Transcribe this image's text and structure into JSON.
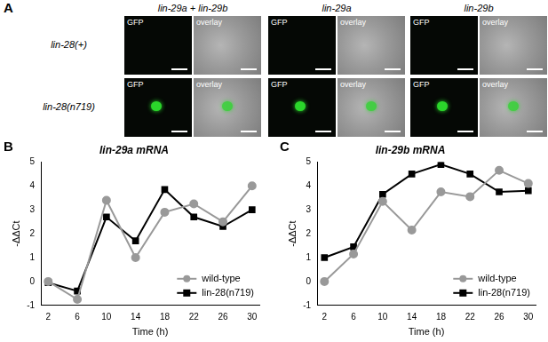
{
  "panel_a": {
    "panel_label": "A",
    "columns": [
      "lin-29a + lin-29b",
      "lin-29a",
      "lin-29b"
    ],
    "rows": [
      "lin-28(+)",
      "lin-28(n719)"
    ],
    "image_labels": [
      "GFP",
      "overlay"
    ]
  },
  "chart_data": [
    {
      "panel_label": "B",
      "type": "line",
      "title": "lin-29a mRNA",
      "x_label": "Time (h)",
      "y_label": "-ΔΔCt",
      "x": [
        2,
        6,
        10,
        14,
        18,
        22,
        26,
        30
      ],
      "series": [
        {
          "name": "wild-type",
          "color": "#999999",
          "marker": "circle",
          "values": [
            0,
            -0.75,
            3.4,
            1.0,
            2.9,
            3.25,
            2.5,
            4.0
          ]
        },
        {
          "name": "lin-28(n719)",
          "color": "#000000",
          "marker": "square",
          "values": [
            -0.05,
            -0.4,
            2.7,
            1.7,
            3.85,
            2.7,
            2.3,
            3.0
          ]
        }
      ],
      "xlim": [
        1,
        31
      ],
      "xticks": [
        2,
        6,
        10,
        14,
        18,
        22,
        26,
        30
      ],
      "ylim": [
        -1,
        5
      ],
      "yticks": [
        -1,
        0,
        1,
        2,
        3,
        4,
        5
      ],
      "grid": false,
      "legend": "lower right"
    },
    {
      "panel_label": "C",
      "type": "line",
      "title": "lin-29b mRNA",
      "x_label": "Time (h)",
      "y_label": "-ΔΔCt",
      "x": [
        2,
        6,
        10,
        14,
        18,
        22,
        26,
        30
      ],
      "series": [
        {
          "name": "wild-type",
          "color": "#999999",
          "marker": "circle",
          "values": [
            0,
            1.15,
            3.35,
            2.15,
            3.75,
            3.55,
            4.65,
            4.1
          ]
        },
        {
          "name": "lin-28(n719)",
          "color": "#000000",
          "marker": "square",
          "values": [
            1.0,
            1.45,
            3.65,
            4.5,
            4.9,
            4.5,
            3.75,
            3.8
          ]
        }
      ],
      "xlim": [
        1,
        31
      ],
      "xticks": [
        2,
        6,
        10,
        14,
        18,
        22,
        26,
        30
      ],
      "ylim": [
        -1,
        5
      ],
      "yticks": [
        -1,
        0,
        1,
        2,
        3,
        4,
        5
      ],
      "grid": false,
      "legend": "lower right"
    }
  ]
}
